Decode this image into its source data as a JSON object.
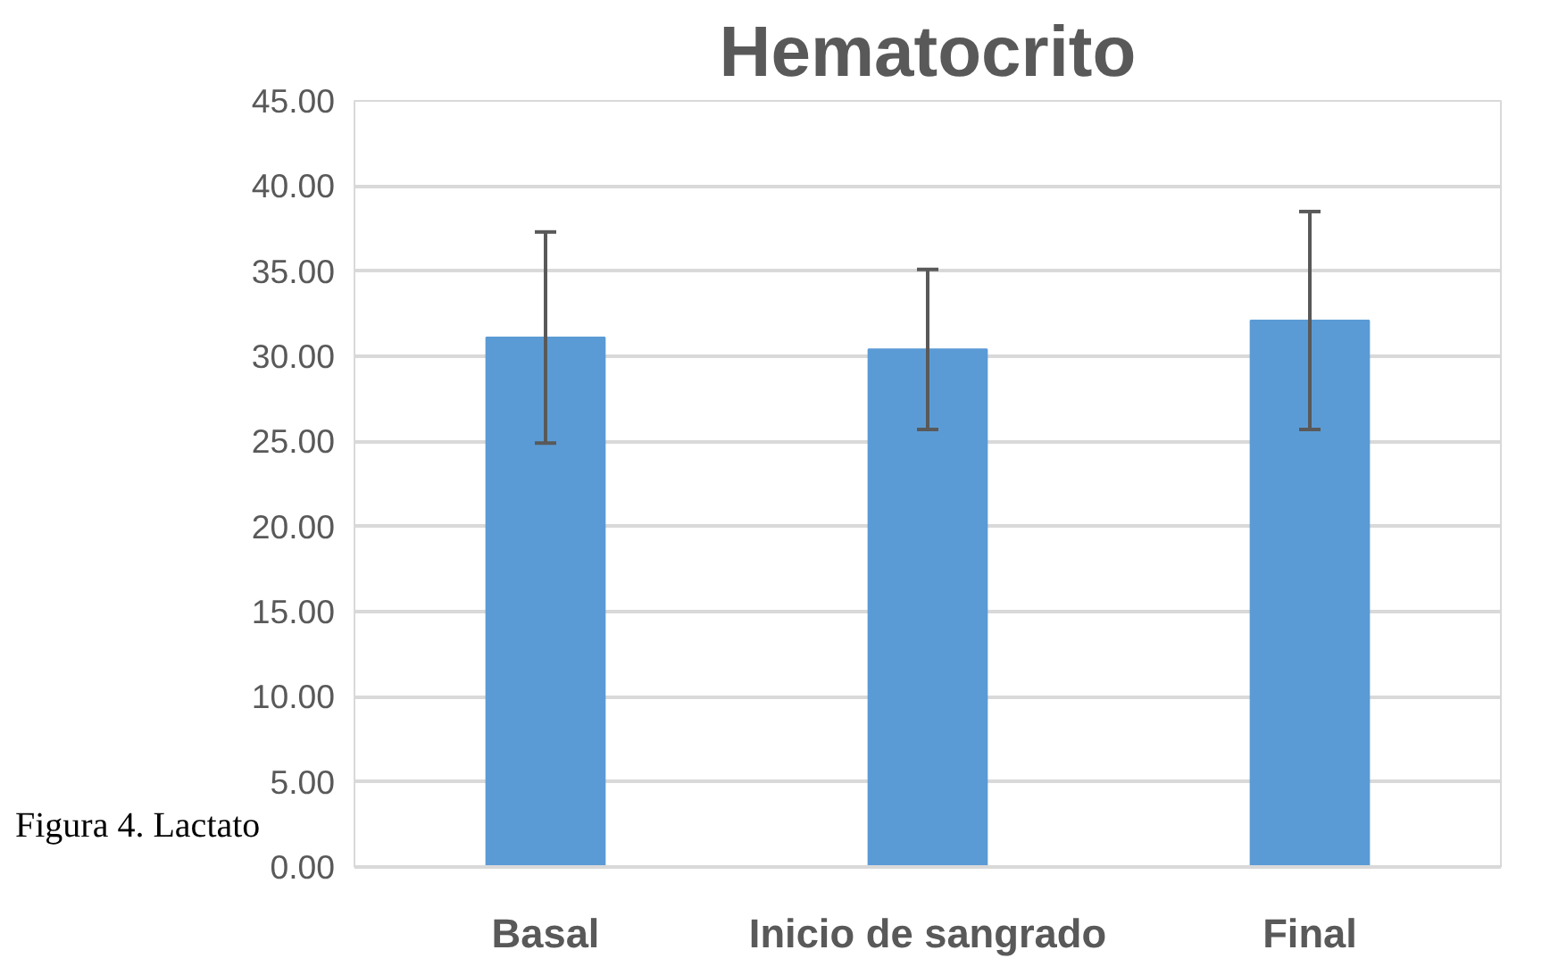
{
  "chart_data": {
    "type": "bar",
    "title": "Hematocrito",
    "categories": [
      "Basal",
      "Inicio de sangrado",
      "Final"
    ],
    "values": [
      31.1,
      30.4,
      32.1
    ],
    "errors": [
      6.2,
      4.7,
      6.4
    ],
    "color": "#5b9bd5",
    "ylim": [
      0,
      45
    ],
    "yticks": [
      {
        "value": 0,
        "label": "0.00"
      },
      {
        "value": 5,
        "label": "5.00"
      },
      {
        "value": 10,
        "label": "10.00"
      },
      {
        "value": 15,
        "label": "15.00"
      },
      {
        "value": 20,
        "label": "20.00"
      },
      {
        "value": 25,
        "label": "25.00"
      },
      {
        "value": 30,
        "label": "30.00"
      },
      {
        "value": 35,
        "label": "35.00"
      },
      {
        "value": 40,
        "label": "40.00"
      },
      {
        "value": 45,
        "label": "45.00"
      }
    ],
    "grid": "y",
    "annotations": [
      "Figura 4. Lactato"
    ]
  }
}
